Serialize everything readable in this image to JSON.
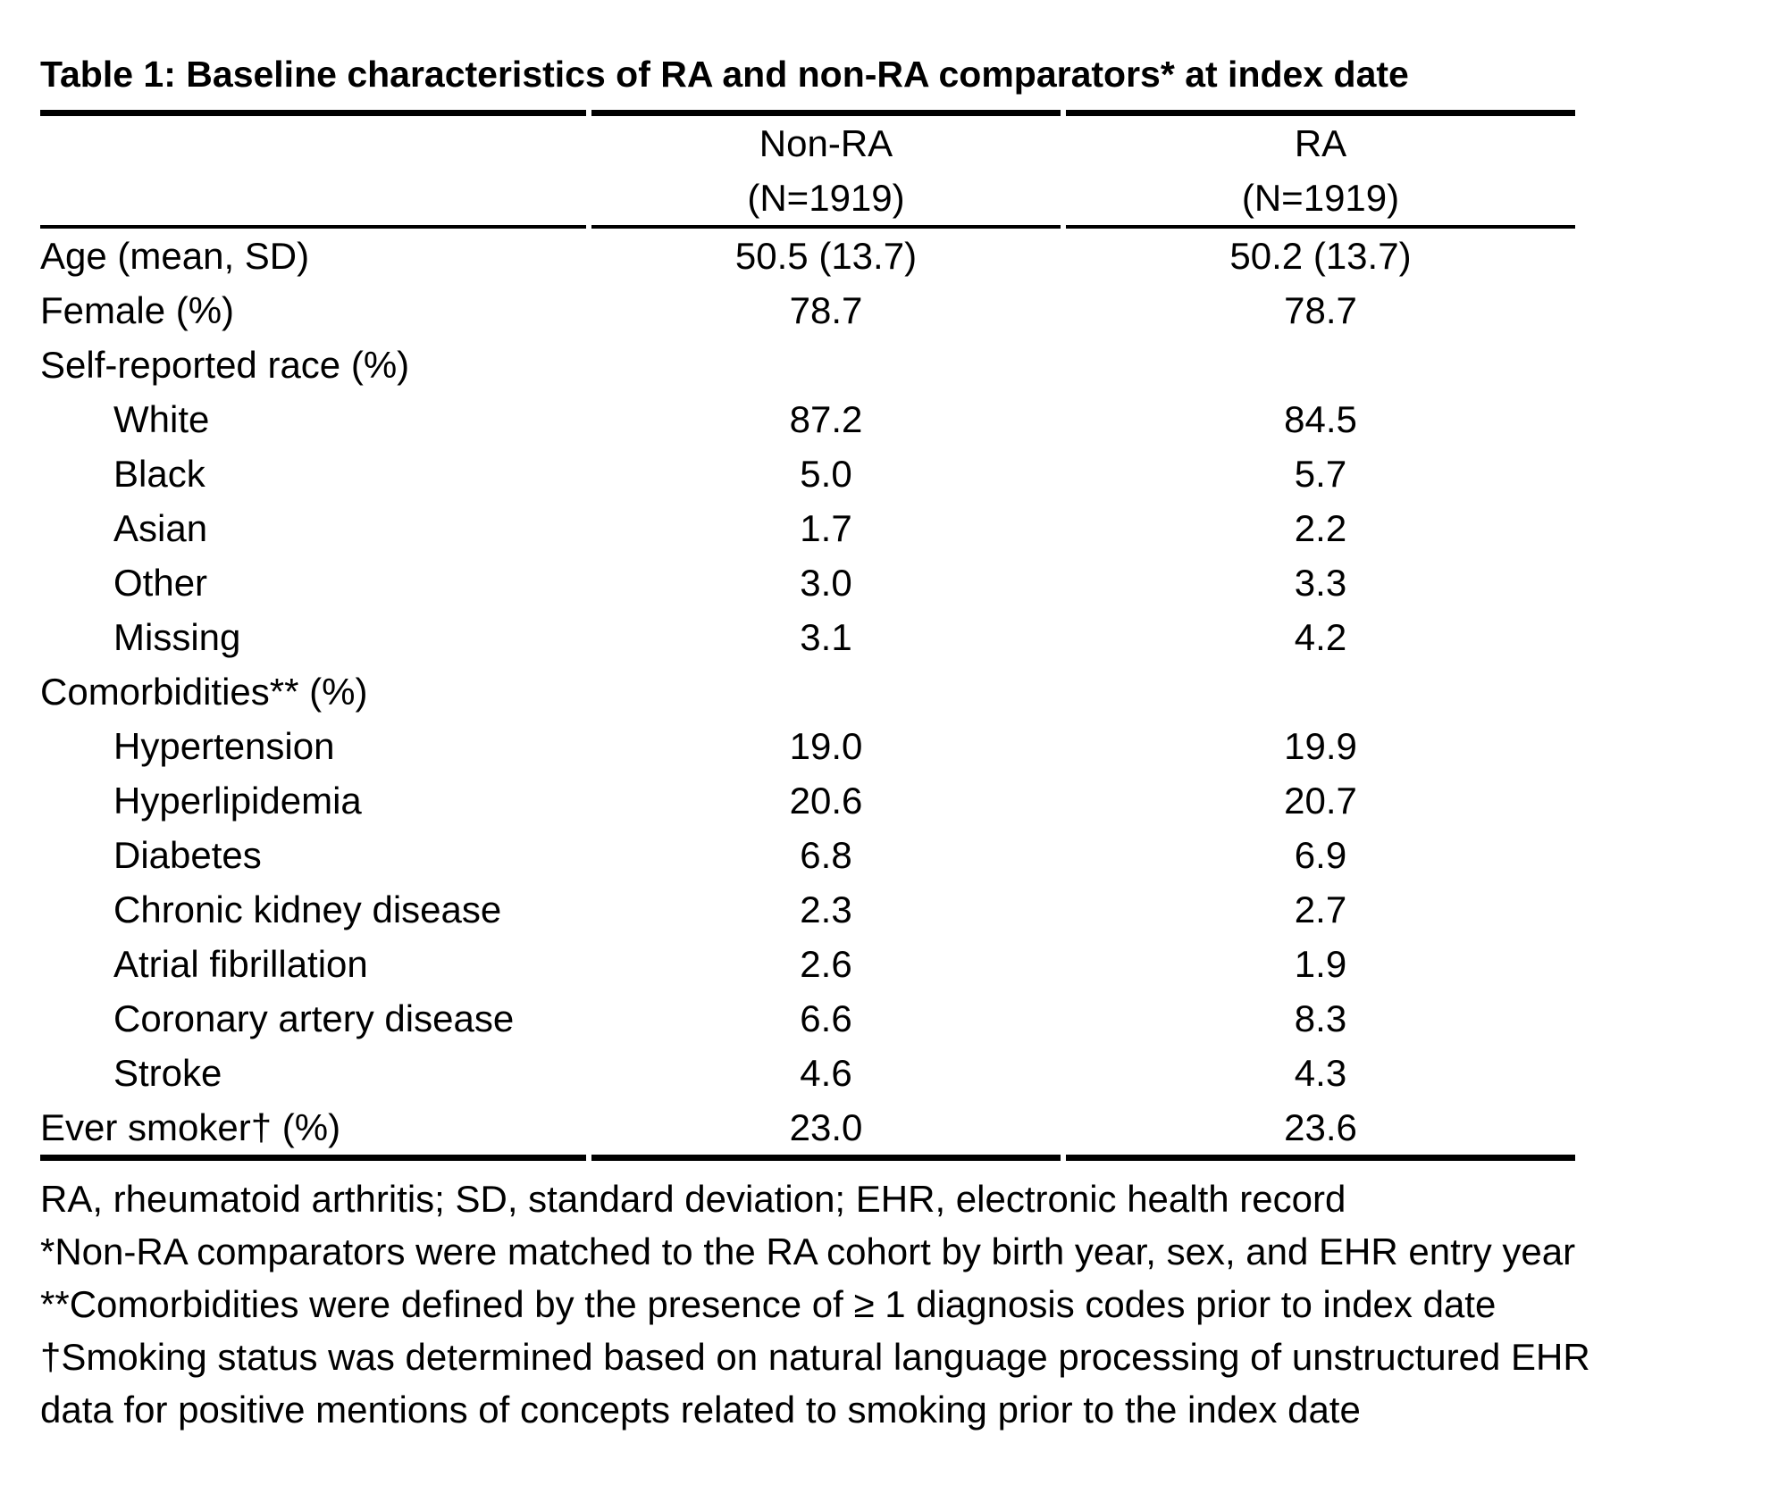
{
  "title": "Table 1: Baseline characteristics of RA and non-RA comparators* at index date",
  "columns": [
    {
      "name": "Non-RA",
      "n": "(N=1919)"
    },
    {
      "name": "RA",
      "n": "(N=1919)"
    }
  ],
  "rows": [
    {
      "label": "Age (mean, SD)",
      "nonra": "50.5 (13.7)",
      "ra": "50.2 (13.7)"
    },
    {
      "label": "Female (%)",
      "nonra": "78.7",
      "ra": "78.7"
    },
    {
      "label": "Self-reported race (%)",
      "nonra": "",
      "ra": ""
    },
    {
      "label": "White",
      "nonra": "87.2",
      "ra": "84.5"
    },
    {
      "label": "Black",
      "nonra": "5.0",
      "ra": "5.7"
    },
    {
      "label": "Asian",
      "nonra": "1.7",
      "ra": "2.2"
    },
    {
      "label": "Other",
      "nonra": "3.0",
      "ra": "3.3"
    },
    {
      "label": "Missing",
      "nonra": "3.1",
      "ra": "4.2"
    },
    {
      "label": "Comorbidities** (%)",
      "nonra": "",
      "ra": ""
    },
    {
      "label": "Hypertension",
      "nonra": "19.0",
      "ra": "19.9"
    },
    {
      "label": "Hyperlipidemia",
      "nonra": "20.6",
      "ra": "20.7"
    },
    {
      "label": "Diabetes",
      "nonra": "6.8",
      "ra": "6.9"
    },
    {
      "label": "Chronic kidney disease",
      "nonra": "2.3",
      "ra": "2.7"
    },
    {
      "label": "Atrial fibrillation",
      "nonra": "2.6",
      "ra": "1.9"
    },
    {
      "label": "Coronary artery disease",
      "nonra": "6.6",
      "ra": "8.3"
    },
    {
      "label": "Stroke",
      "nonra": "4.6",
      "ra": "4.3"
    },
    {
      "label": "Ever smoker† (%)",
      "nonra": "23.0",
      "ra": "23.6"
    }
  ],
  "footnotes": [
    "RA, rheumatoid arthritis; SD, standard deviation; EHR, electronic health record",
    "*Non-RA comparators were matched to the RA cohort by birth year, sex, and EHR entry year",
    "**Comorbidities were defined by the presence of ≥ 1 diagnosis codes prior to index date",
    "†Smoking status was determined based on natural language processing of unstructured EHR",
    "data for positive mentions of concepts related to smoking prior to the index date"
  ],
  "colors": {
    "text": "#000000",
    "background": "#ffffff",
    "rule": "#000000"
  }
}
